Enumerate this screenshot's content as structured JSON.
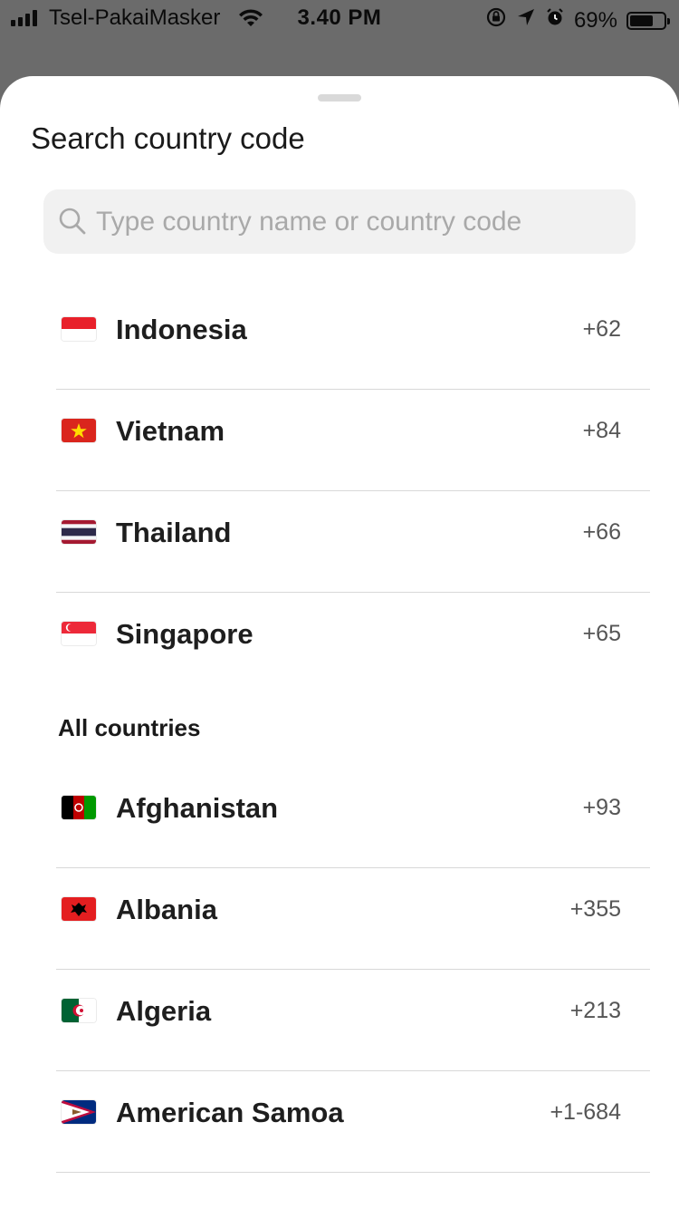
{
  "status_bar": {
    "carrier": "Tsel-PakaiMasker",
    "time": "3.40 PM",
    "battery": "69%",
    "battery_level": 0.69
  },
  "sheet": {
    "title": "Search country code",
    "search": {
      "placeholder": "Type country name or country code",
      "value": ""
    },
    "section_header": "All countries",
    "suggested": [
      {
        "name": "Indonesia",
        "code": "+62",
        "flag": "flag-indonesia-icon"
      },
      {
        "name": "Vietnam",
        "code": "+84",
        "flag": "flag-vietnam-icon"
      },
      {
        "name": "Thailand",
        "code": "+66",
        "flag": "flag-thailand-icon"
      },
      {
        "name": "Singapore",
        "code": "+65",
        "flag": "flag-singapore-icon"
      }
    ],
    "countries": [
      {
        "name": "Afghanistan",
        "code": "+93",
        "flag": "flag-afghanistan-icon"
      },
      {
        "name": "Albania",
        "code": "+355",
        "flag": "flag-albania-icon"
      },
      {
        "name": "Algeria",
        "code": "+213",
        "flag": "flag-algeria-icon"
      },
      {
        "name": "American Samoa",
        "code": "+1-684",
        "flag": "flag-american-samoa-icon"
      }
    ]
  }
}
